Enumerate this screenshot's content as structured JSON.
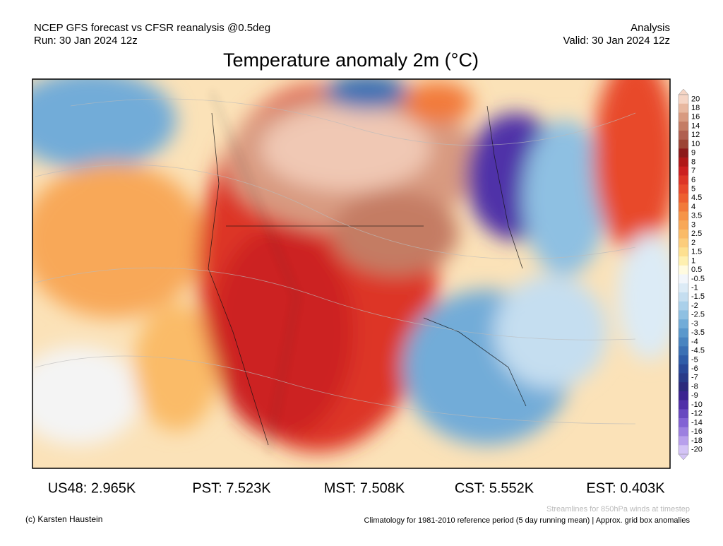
{
  "header": {
    "left": [
      "NCEP GFS forecast vs CFSR reanalysis @0.5deg",
      "Run: 30 Jan 2024 12z"
    ],
    "right": [
      "Analysis",
      "Valid: 30 Jan 2024 12z"
    ],
    "title": "Temperature anomaly 2m (°C)"
  },
  "colorbar": {
    "labels": [
      "20",
      "18",
      "16",
      "14",
      "12",
      "10",
      "9",
      "8",
      "7",
      "6",
      "5",
      "4.5",
      "4",
      "3.5",
      "3",
      "2.5",
      "2",
      "1.5",
      "1",
      "0.5",
      "-0.5",
      "-1",
      "-1.5",
      "-2",
      "-2.5",
      "-3",
      "-3.5",
      "-4",
      "-4.5",
      "-5",
      "-6",
      "-7",
      "-8",
      "-9",
      "-10",
      "-12",
      "-14",
      "-16",
      "-18",
      "-20"
    ],
    "colors": [
      "#f5d5c5",
      "#e8b8a0",
      "#d89a80",
      "#c47c64",
      "#b06050",
      "#9c4434",
      "#8c1a1a",
      "#b01818",
      "#cc2020",
      "#dd3526",
      "#e84a2c",
      "#ee6030",
      "#f27a3a",
      "#f69448",
      "#f8a858",
      "#fabb68",
      "#fccd7c",
      "#fde090",
      "#fef0b0",
      "#fffbe0",
      "#f2f6fb",
      "#dcebf6",
      "#c5def0",
      "#aad0ea",
      "#8ec0e2",
      "#72acd8",
      "#5a98cc",
      "#4884c0",
      "#3a70b4",
      "#2e5ca8",
      "#284898",
      "#283a88",
      "#2c2a7c",
      "#3c2490",
      "#5030a8",
      "#6848c0",
      "#8262d4",
      "#9c80e0",
      "#b8a0ec",
      "#d4c4f6"
    ]
  },
  "stats": [
    "US48: 2.965K",
    "PST: 7.523K",
    "MST: 7.508K",
    "CST: 5.552K",
    "EST: 0.403K"
  ],
  "footer": {
    "credit": "(c) Karsten Haustein",
    "streamlines": "Streamlines for 850hPa winds at timestep",
    "climatology": "Climatology for 1981-2010 reference period (5 day running mean) | Approx. grid box anomalies"
  }
}
